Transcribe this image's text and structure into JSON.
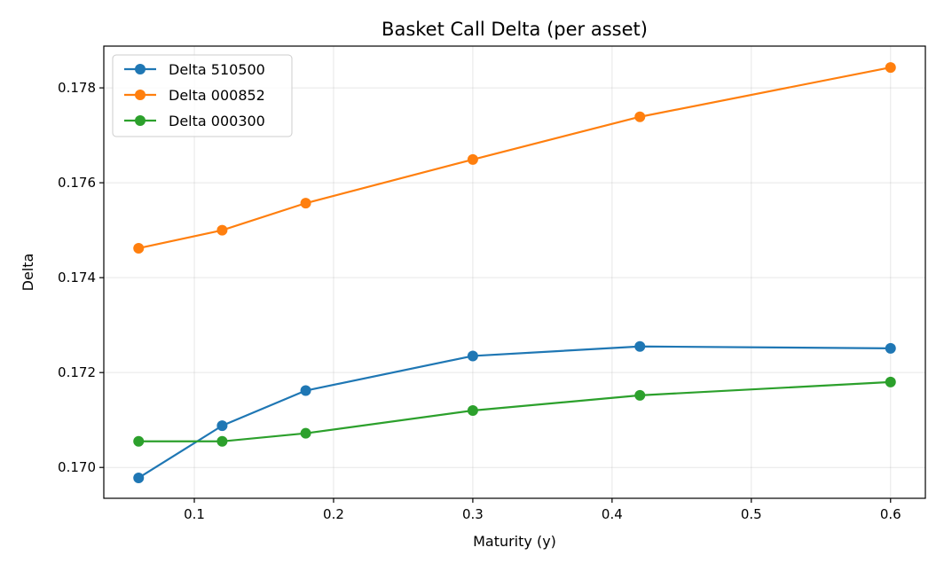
{
  "chart_data": {
    "type": "line",
    "title": "Basket Call Delta (per asset)",
    "xlabel": "Maturity (y)",
    "ylabel": "Delta",
    "xlim": [
      0.035,
      0.625
    ],
    "ylim": [
      0.16935,
      0.17888
    ],
    "xticks": [
      0.1,
      0.2,
      0.3,
      0.4,
      0.5,
      0.6
    ],
    "xtick_labels": [
      "0.1",
      "0.2",
      "0.3",
      "0.4",
      "0.5",
      "0.6"
    ],
    "yticks": [
      0.17,
      0.172,
      0.174,
      0.176,
      0.178
    ],
    "ytick_labels": [
      "0.170",
      "0.172",
      "0.174",
      "0.176",
      "0.178"
    ],
    "grid": true,
    "legend_position": "top-left",
    "x": [
      0.06,
      0.12,
      0.18,
      0.3,
      0.42,
      0.6
    ],
    "series": [
      {
        "name": "Delta 510500",
        "color": "#1f77b4",
        "marker": "circle",
        "values": [
          0.16978,
          0.17088,
          0.17162,
          0.17235,
          0.17255,
          0.17251
        ]
      },
      {
        "name": "Delta 000852",
        "color": "#ff7f0e",
        "marker": "circle",
        "values": [
          0.17462,
          0.175,
          0.17557,
          0.17649,
          0.17739,
          0.17843
        ]
      },
      {
        "name": "Delta 000300",
        "color": "#2ca02c",
        "marker": "circle",
        "values": [
          0.17055,
          0.17055,
          0.17072,
          0.1712,
          0.17152,
          0.1718
        ]
      }
    ]
  }
}
